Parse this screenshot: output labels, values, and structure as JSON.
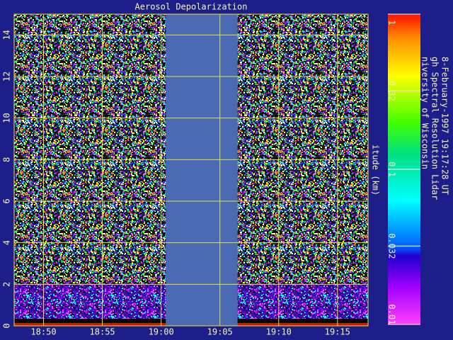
{
  "chart_data": {
    "type": "lidar-image",
    "title": "Aerosol Depolarization",
    "y_label": "itude (km)",
    "side_texts": [
      "niversity of Wisconsin",
      "gh Spectral Resolution Lidar",
      "8-February-1997 19:17:28 UT"
    ],
    "xlim": [
      1127.5,
      1157.6
    ],
    "xticks": [
      {
        "value": 1130,
        "label": "18:50"
      },
      {
        "value": 1135,
        "label": "18:55"
      },
      {
        "value": 1140,
        "label": "19:00"
      },
      {
        "value": 1145,
        "label": "19:05"
      },
      {
        "value": 1150,
        "label": "19:10"
      },
      {
        "value": 1155,
        "label": "19:15"
      }
    ],
    "ylim": [
      0,
      15
    ],
    "yticks": [
      0,
      2,
      4,
      6,
      8,
      10,
      12,
      14
    ],
    "no_data_intervals": [
      [
        1140.4,
        1146.5
      ]
    ],
    "grid": true,
    "grid_color": "#e8e040",
    "colorbar": {
      "log": true,
      "lim": [
        0.01,
        1
      ],
      "ticks": [
        0.01,
        {
          "value": 0.032,
          "label": "0.032"
        },
        0.1,
        0.32,
        1
      ]
    }
  }
}
